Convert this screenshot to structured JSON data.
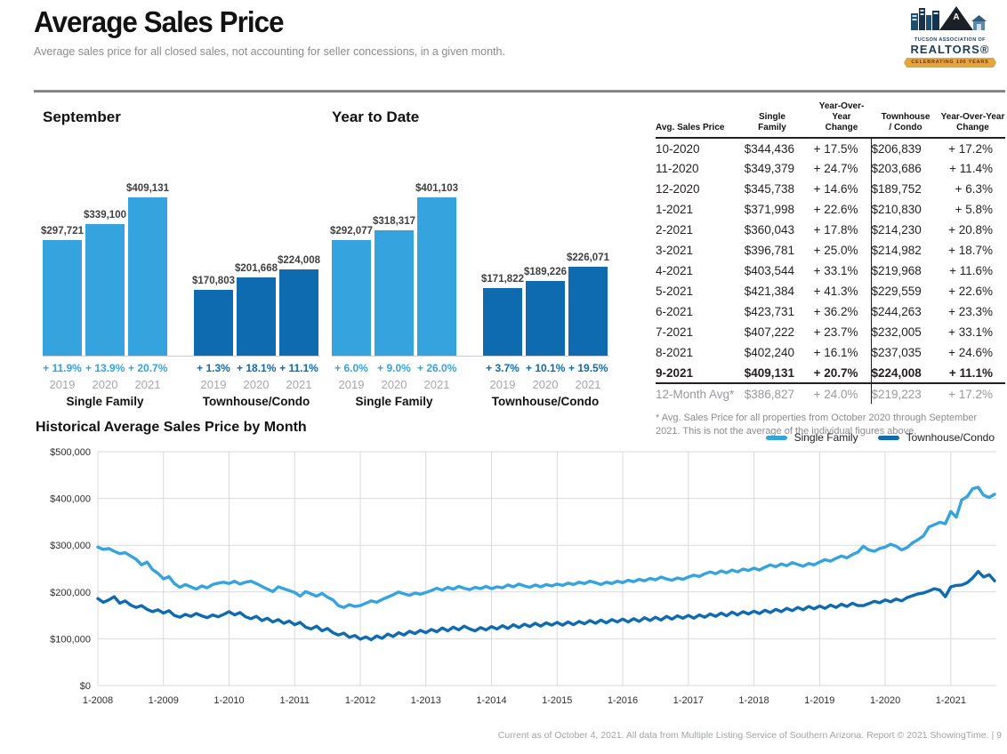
{
  "page": {
    "title": "Average Sales Price",
    "subtitle": "Average sales price for all closed sales, not accounting for seller concessions, in a given month.",
    "footer": "Current as of October 4, 2021. All data from Multiple Listing Service of Southern Arizona. Report © 2021 ShowingTime.",
    "footer_separator": "|",
    "page_number": "9"
  },
  "logo": {
    "org_line1": "TUCSON ASSOCIATION OF",
    "org_line2": "REALTORS®",
    "ribbon": "CELEBRATING 100 YEARS"
  },
  "chart_data": [
    {
      "type": "bar",
      "title": "September",
      "ylim": [
        0,
        409131
      ],
      "groups": [
        {
          "label": "Single Family",
          "color": "#35a3de",
          "years": [
            "2019",
            "2020",
            "2021"
          ],
          "values": [
            297721,
            339100,
            409131
          ],
          "labels": [
            "$297,721",
            "$339,100",
            "$409,131"
          ],
          "changes": [
            "+ 11.9%",
            "+ 13.9%",
            "+ 20.7%"
          ]
        },
        {
          "label": "Townhouse/Condo",
          "color": "#0e6baf",
          "years": [
            "2019",
            "2020",
            "2021"
          ],
          "values": [
            170803,
            201668,
            224008
          ],
          "labels": [
            "$170,803",
            "$201,668",
            "$224,008"
          ],
          "changes": [
            "+ 1.3%",
            "+ 18.1%",
            "+ 11.1%"
          ]
        }
      ]
    },
    {
      "type": "bar",
      "title": "Year to Date",
      "ylim": [
        0,
        401103
      ],
      "groups": [
        {
          "label": "Single Family",
          "color": "#35a3de",
          "years": [
            "2019",
            "2020",
            "2021"
          ],
          "values": [
            292077,
            318317,
            401103
          ],
          "labels": [
            "$292,077",
            "$318,317",
            "$401,103"
          ],
          "changes": [
            "+ 6.0%",
            "+ 9.0%",
            "+ 26.0%"
          ]
        },
        {
          "label": "Townhouse/Condo",
          "color": "#0e6baf",
          "years": [
            "2019",
            "2020",
            "2021"
          ],
          "values": [
            171822,
            189226,
            226071
          ],
          "labels": [
            "$171,822",
            "$189,226",
            "$226,071"
          ],
          "changes": [
            "+ 3.7%",
            "+ 10.1%",
            "+ 19.5%"
          ]
        }
      ]
    },
    {
      "type": "line",
      "title": "Historical Average Sales Price by Month",
      "x_start": "1-2008",
      "x_end": "9-2021",
      "x_tick_labels": [
        "1-2008",
        "1-2009",
        "1-2010",
        "1-2011",
        "1-2012",
        "1-2013",
        "1-2014",
        "1-2015",
        "1-2016",
        "1-2017",
        "1-2018",
        "1-2019",
        "1-2020",
        "1-2021"
      ],
      "months_per_tick": 12,
      "ylim": [
        0,
        500000
      ],
      "y_ticks": [
        0,
        100000,
        200000,
        300000,
        400000,
        500000
      ],
      "y_tick_labels": [
        "$0",
        "$100,000",
        "$200,000",
        "$300,000",
        "$400,000",
        "$500,000"
      ],
      "grid": true,
      "legend_position": "top-right",
      "series": [
        {
          "name": "Single Family",
          "color": "#35a3de",
          "values_k": [
            296,
            291,
            293,
            287,
            282,
            284,
            277,
            270,
            258,
            264,
            248,
            240,
            228,
            233,
            218,
            210,
            216,
            211,
            206,
            213,
            209,
            216,
            219,
            221,
            218,
            223,
            217,
            221,
            223,
            218,
            212,
            206,
            201,
            211,
            207,
            203,
            199,
            191,
            201,
            196,
            191,
            197,
            189,
            183,
            171,
            167,
            173,
            169,
            171,
            176,
            181,
            178,
            184,
            189,
            194,
            200,
            196,
            193,
            198,
            195,
            199,
            203,
            208,
            204,
            210,
            206,
            212,
            208,
            205,
            210,
            207,
            212,
            207,
            211,
            209,
            215,
            211,
            217,
            213,
            210,
            215,
            211,
            216,
            213,
            217,
            214,
            219,
            216,
            221,
            218,
            223,
            220,
            216,
            221,
            218,
            223,
            220,
            225,
            222,
            227,
            224,
            229,
            226,
            232,
            228,
            225,
            230,
            227,
            232,
            236,
            233,
            239,
            243,
            239,
            245,
            241,
            247,
            243,
            249,
            246,
            251,
            247,
            253,
            258,
            254,
            260,
            256,
            263,
            259,
            255,
            261,
            258,
            264,
            269,
            266,
            272,
            277,
            273,
            280,
            285,
            298,
            290,
            287,
            293,
            296,
            302,
            298,
            290,
            295,
            305,
            312,
            320,
            339,
            344,
            349,
            346,
            372,
            360,
            397,
            404,
            421,
            424,
            407,
            402,
            409
          ]
        },
        {
          "name": "Townhouse/Condo",
          "color": "#0e6baf",
          "values_k": [
            186,
            178,
            183,
            190,
            176,
            181,
            172,
            167,
            171,
            163,
            158,
            162,
            155,
            160,
            150,
            146,
            152,
            148,
            154,
            149,
            145,
            151,
            147,
            152,
            158,
            151,
            156,
            147,
            143,
            148,
            139,
            144,
            136,
            141,
            133,
            138,
            130,
            135,
            125,
            121,
            127,
            117,
            122,
            113,
            108,
            112,
            103,
            107,
            99,
            104,
            98,
            106,
            101,
            110,
            105,
            113,
            108,
            116,
            111,
            118,
            113,
            120,
            115,
            123,
            117,
            125,
            119,
            127,
            121,
            117,
            124,
            119,
            126,
            121,
            128,
            122,
            130,
            124,
            131,
            126,
            133,
            127,
            134,
            129,
            135,
            129,
            136,
            130,
            137,
            132,
            139,
            133,
            140,
            134,
            141,
            136,
            142,
            136,
            143,
            137,
            145,
            139,
            146,
            140,
            148,
            142,
            149,
            144,
            150,
            144,
            151,
            146,
            153,
            148,
            155,
            149,
            157,
            151,
            158,
            153,
            159,
            154,
            161,
            156,
            163,
            158,
            165,
            160,
            167,
            162,
            169,
            164,
            170,
            165,
            172,
            167,
            174,
            169,
            176,
            171,
            171,
            175,
            180,
            177,
            183,
            179,
            185,
            181,
            188,
            192,
            196,
            198,
            202,
            207,
            204,
            190,
            211,
            214,
            215,
            220,
            230,
            244,
            232,
            237,
            224
          ]
        }
      ]
    }
  ],
  "table": {
    "headers": [
      [
        "Avg. Sales Price"
      ],
      [
        "Single",
        "Family"
      ],
      [
        "Year-Over-Year",
        "Change"
      ],
      [
        "Townhouse",
        "/ Condo"
      ],
      [
        "Year-Over-Year",
        "Change"
      ]
    ],
    "rows": [
      {
        "period": "10-2020",
        "sf": "$344,436",
        "sf_chg": "+ 17.5%",
        "th": "$206,839",
        "th_chg": "+ 17.2%",
        "bold": false,
        "avg": false
      },
      {
        "period": "11-2020",
        "sf": "$349,379",
        "sf_chg": "+ 24.7%",
        "th": "$203,686",
        "th_chg": "+ 11.4%",
        "bold": false,
        "avg": false
      },
      {
        "period": "12-2020",
        "sf": "$345,738",
        "sf_chg": "+ 14.6%",
        "th": "$189,752",
        "th_chg": "+ 6.3%",
        "bold": false,
        "avg": false
      },
      {
        "period": "1-2021",
        "sf": "$371,998",
        "sf_chg": "+ 22.6%",
        "th": "$210,830",
        "th_chg": "+ 5.8%",
        "bold": false,
        "avg": false
      },
      {
        "period": "2-2021",
        "sf": "$360,043",
        "sf_chg": "+ 17.8%",
        "th": "$214,230",
        "th_chg": "+ 20.8%",
        "bold": false,
        "avg": false
      },
      {
        "period": "3-2021",
        "sf": "$396,781",
        "sf_chg": "+ 25.0%",
        "th": "$214,982",
        "th_chg": "+ 18.7%",
        "bold": false,
        "avg": false
      },
      {
        "period": "4-2021",
        "sf": "$403,544",
        "sf_chg": "+ 33.1%",
        "th": "$219,968",
        "th_chg": "+ 11.6%",
        "bold": false,
        "avg": false
      },
      {
        "period": "5-2021",
        "sf": "$421,384",
        "sf_chg": "+ 41.3%",
        "th": "$229,559",
        "th_chg": "+ 22.6%",
        "bold": false,
        "avg": false
      },
      {
        "period": "6-2021",
        "sf": "$423,731",
        "sf_chg": "+ 36.2%",
        "th": "$244,263",
        "th_chg": "+ 23.3%",
        "bold": false,
        "avg": false
      },
      {
        "period": "7-2021",
        "sf": "$407,222",
        "sf_chg": "+ 23.7%",
        "th": "$232,005",
        "th_chg": "+ 33.1%",
        "bold": false,
        "avg": false
      },
      {
        "period": "8-2021",
        "sf": "$402,240",
        "sf_chg": "+ 16.1%",
        "th": "$237,035",
        "th_chg": "+ 24.6%",
        "bold": false,
        "avg": false
      },
      {
        "period": "9-2021",
        "sf": "$409,131",
        "sf_chg": "+ 20.7%",
        "th": "$224,008",
        "th_chg": "+ 11.1%",
        "bold": true,
        "avg": false
      },
      {
        "period": "12-Month Avg*",
        "sf": "$386,827",
        "sf_chg": "+ 24.0%",
        "th": "$219,223",
        "th_chg": "+ 17.2%",
        "bold": false,
        "avg": true
      }
    ],
    "footnote": "* Avg. Sales Price for all properties from October 2020 through September 2021. This is not the average of the individual figures above."
  }
}
